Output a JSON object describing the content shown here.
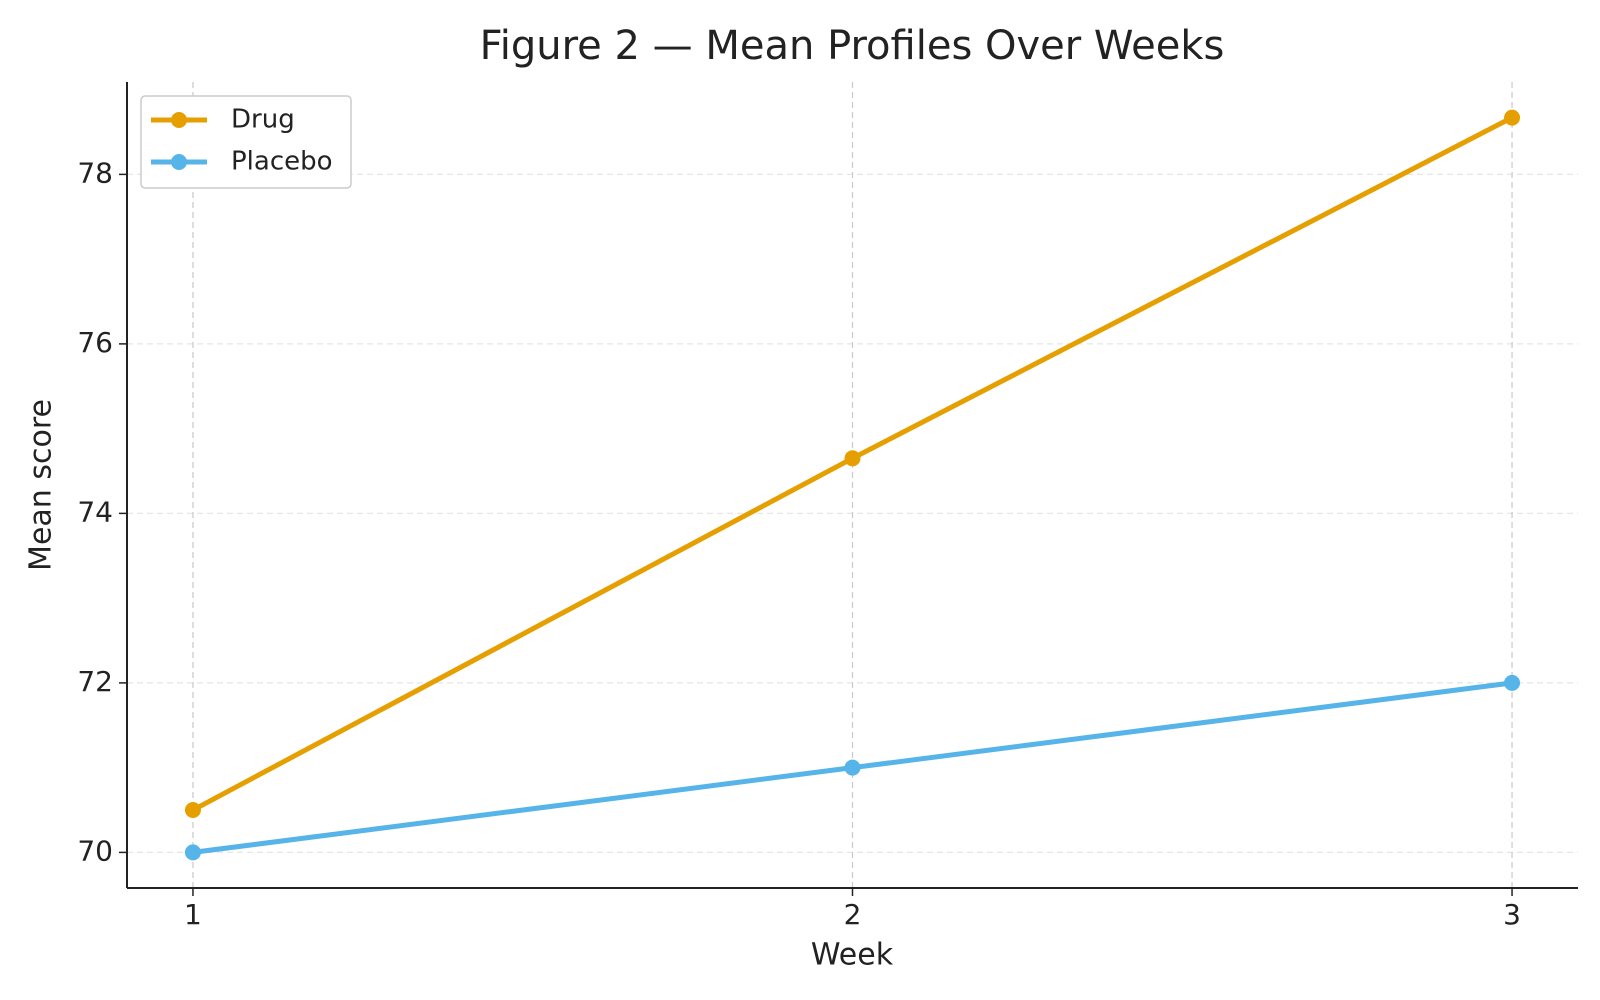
{
  "chart_data": {
    "type": "line",
    "title": "Figure 2 — Mean Profiles Over Weeks",
    "x_label": "Week",
    "y_label": "Mean score",
    "x": [
      1,
      2,
      3
    ],
    "series": [
      {
        "name": "Drug",
        "color": "#e69f00",
        "values": [
          70.5,
          74.65,
          78.67
        ]
      },
      {
        "name": "Placebo",
        "color": "#56b4e9",
        "values": [
          70,
          71,
          72
        ]
      }
    ],
    "xlim": [
      0.9,
      3.1
    ],
    "xticks": [
      1,
      2,
      3
    ],
    "ylim": [
      69.58,
      79.09
    ],
    "yticks": [
      70,
      72,
      74,
      76,
      78
    ],
    "grid": true,
    "legend": "upper left"
  }
}
